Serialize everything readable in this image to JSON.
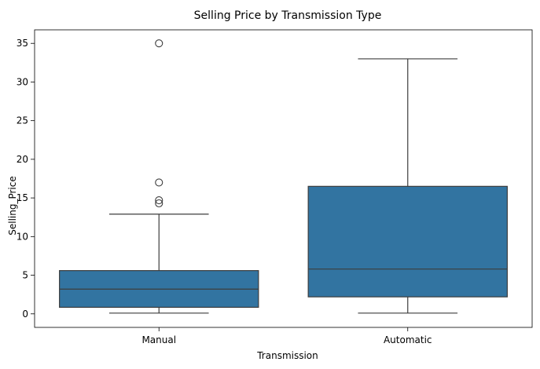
{
  "chart_data": {
    "type": "box",
    "title": "Selling Price by Transmission Type",
    "xlabel": "Transmission",
    "ylabel": "Selling_Price",
    "categories": [
      "Manual",
      "Automatic"
    ],
    "ylim": [
      -1.75,
      36.75
    ],
    "yticks": [
      0,
      5,
      10,
      15,
      20,
      25,
      30,
      35
    ],
    "grid": false,
    "box_color": "#3274a1",
    "line_color": "#3d3d3d",
    "boxes": [
      {
        "category": "Manual",
        "whisker_low": 0.1,
        "q1": 0.85,
        "median": 3.2,
        "q3": 5.6,
        "whisker_high": 12.9,
        "outliers": [
          14.3,
          14.7,
          17.0,
          35.0
        ]
      },
      {
        "category": "Automatic",
        "whisker_low": 0.1,
        "q1": 2.2,
        "median": 5.8,
        "q3": 16.5,
        "whisker_high": 33.0,
        "outliers": []
      }
    ]
  }
}
